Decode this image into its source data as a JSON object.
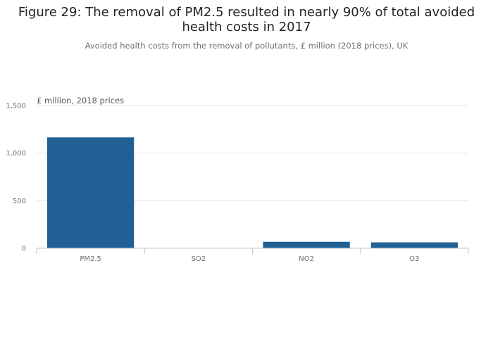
{
  "title": "Figure 29: The removal of PM2.5 resulted in nearly 90% of total avoided health costs in 2017",
  "subtitle": "Avoided health costs from the removal of pollutants, £ million (2018 prices), UK",
  "colors": {
    "bar": "#206095",
    "grid": "#e6e6e6",
    "axis": "#b8c7d6",
    "text": "#707070"
  },
  "chart_data": {
    "type": "bar",
    "categories": [
      "PM2.5",
      "SO2",
      "NO2",
      "O3"
    ],
    "values": [
      1165,
      2,
      68,
      62
    ],
    "unit_label": "£ million, 2018 prices",
    "ylim": [
      0,
      1500
    ],
    "yticks": [
      0,
      500,
      1000,
      1500
    ],
    "ytick_labels": [
      "0",
      "500",
      "1,000",
      "1,500"
    ],
    "grid": true,
    "legend": "none"
  }
}
